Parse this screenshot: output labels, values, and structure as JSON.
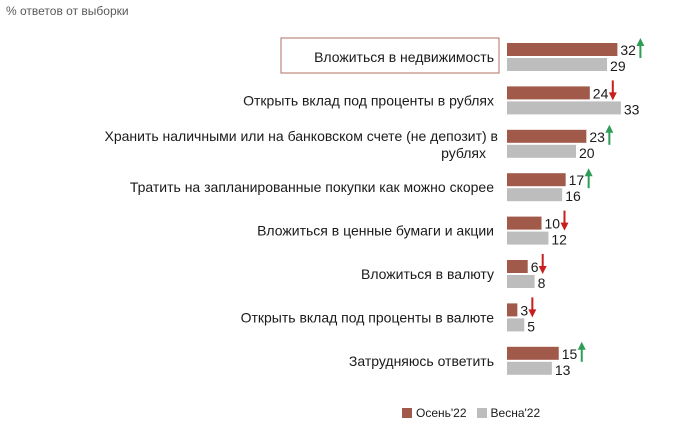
{
  "subtitle": "% ответов от выборки",
  "colors": {
    "autumn": "#A15A4A",
    "spring": "#BDBDBD",
    "up": "#2E9E57",
    "down": "#C81E1E",
    "highlight_border": "#B07060"
  },
  "chart_data": {
    "type": "bar",
    "orientation": "horizontal",
    "title": "",
    "xlabel": "",
    "ylabel": "",
    "categories": [
      [
        "Вложиться в недвижимость"
      ],
      [
        "Открыть вклад под проценты в рублях"
      ],
      [
        "Хранить наличными или на банковском счете (не депозит) в",
        "рублях"
      ],
      [
        "Тратить на запланированные покупки как можно скорее"
      ],
      [
        "Вложиться в ценные бумаги и акции"
      ],
      [
        "Вложиться в валюту"
      ],
      [
        "Открыть вклад под проценты в валюте"
      ],
      [
        "Затрудняюсь ответить"
      ]
    ],
    "series": [
      {
        "name": "Осень'22",
        "values": [
          32,
          24,
          23,
          17,
          10,
          6,
          3,
          15
        ]
      },
      {
        "name": "Весна'22",
        "values": [
          29,
          33,
          20,
          16,
          12,
          8,
          5,
          13
        ]
      }
    ],
    "trend": [
      "up",
      "down",
      "up",
      "up",
      "down",
      "down",
      "down",
      "up"
    ],
    "highlighted_category_index": 0,
    "legend_position": "bottom-right",
    "grid": false
  }
}
